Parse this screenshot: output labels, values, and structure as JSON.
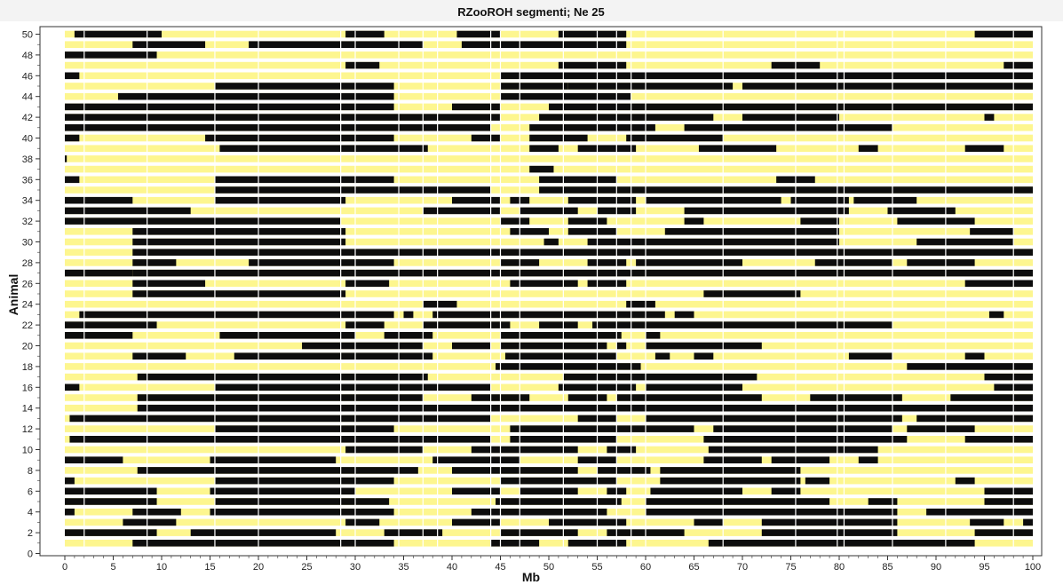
{
  "colors": {
    "homozygous": "#0d0d0d",
    "non_homozygous": "#fdf68f",
    "gap": "#ffffff",
    "axis": "#333333",
    "title_bar": "#f3f3f3"
  },
  "chart_data": {
    "type": "heatmap",
    "title": "RZooROH segmenti; Ne 25",
    "xlabel": "Mb",
    "ylabel": "Animal",
    "xlim": [
      0,
      100
    ],
    "ylim": [
      0,
      50
    ],
    "x_ticks": [
      0,
      5,
      10,
      15,
      20,
      25,
      30,
      35,
      40,
      45,
      50,
      55,
      60,
      65,
      70,
      75,
      80,
      85,
      90,
      95,
      100
    ],
    "y_ticks": [
      0,
      2,
      4,
      6,
      8,
      10,
      12,
      14,
      16,
      18,
      20,
      22,
      24,
      26,
      28,
      30,
      32,
      34,
      36,
      38,
      40,
      42,
      44,
      46,
      48,
      50
    ],
    "grid": false,
    "legend": "none",
    "marker_gaps_mb": [
      2,
      8.5,
      15.5,
      20,
      28.5,
      30,
      34.5,
      37,
      38.5,
      44,
      45,
      47,
      51.5,
      55,
      57,
      58.5,
      60,
      68,
      75.5,
      79.8,
      80.5,
      85.5,
      91,
      98
    ],
    "series": [
      {
        "animal": 1,
        "roh": [
          [
            7,
            34
          ],
          [
            44,
            49
          ],
          [
            52,
            58
          ],
          [
            66.5,
            94
          ]
        ]
      },
      {
        "animal": 2,
        "roh": [
          [
            0,
            9.5
          ],
          [
            13,
            28
          ],
          [
            33,
            39
          ],
          [
            45,
            53
          ],
          [
            56,
            64
          ],
          [
            72,
            86
          ],
          [
            94,
            100
          ]
        ]
      },
      {
        "animal": 3,
        "roh": [
          [
            6,
            11.5
          ],
          [
            29,
            32.5
          ],
          [
            40,
            45
          ],
          [
            50,
            58
          ],
          [
            65,
            68
          ],
          [
            72,
            86
          ],
          [
            93.5,
            97
          ],
          [
            99,
            100
          ]
        ]
      },
      {
        "animal": 4,
        "roh": [
          [
            0,
            1
          ],
          [
            7,
            12
          ],
          [
            15,
            34
          ],
          [
            42,
            56
          ],
          [
            60,
            86
          ],
          [
            89,
            100
          ]
        ]
      },
      {
        "animal": 5,
        "roh": [
          [
            0,
            9.5
          ],
          [
            15.5,
            33.5
          ],
          [
            44.5,
            57.5
          ],
          [
            60,
            79
          ],
          [
            83,
            86
          ],
          [
            95,
            100
          ]
        ]
      },
      {
        "animal": 6,
        "roh": [
          [
            0,
            9.5
          ],
          [
            15,
            30
          ],
          [
            40,
            45
          ],
          [
            47,
            53
          ],
          [
            56,
            58
          ],
          [
            60.5,
            70
          ],
          [
            73,
            76
          ],
          [
            95,
            100
          ]
        ]
      },
      {
        "animal": 7,
        "roh": [
          [
            0,
            1
          ],
          [
            15.5,
            34
          ],
          [
            45,
            57
          ],
          [
            61.5,
            76
          ],
          [
            76.5,
            79
          ],
          [
            92,
            94
          ]
        ]
      },
      {
        "animal": 8,
        "roh": [
          [
            7.5,
            36.5
          ],
          [
            40,
            53
          ],
          [
            55,
            60.5
          ],
          [
            61.5,
            76
          ]
        ]
      },
      {
        "animal": 9,
        "roh": [
          [
            0,
            6
          ],
          [
            15,
            28
          ],
          [
            38,
            47
          ],
          [
            53,
            57
          ],
          [
            66,
            72
          ],
          [
            73,
            79
          ],
          [
            82,
            84
          ]
        ]
      },
      {
        "animal": 10,
        "roh": [
          [
            29,
            37
          ],
          [
            42,
            53
          ],
          [
            56,
            59
          ],
          [
            66.5,
            84
          ]
        ]
      },
      {
        "animal": 11,
        "roh": [
          [
            0.5,
            44
          ],
          [
            46,
            57
          ],
          [
            66,
            87
          ],
          [
            93,
            100
          ]
        ]
      },
      {
        "animal": 12,
        "roh": [
          [
            15.5,
            34
          ],
          [
            46,
            57
          ],
          [
            57,
            65
          ],
          [
            67,
            85.5
          ],
          [
            87,
            94
          ]
        ]
      },
      {
        "animal": 13,
        "roh": [
          [
            0.5,
            44
          ],
          [
            53,
            57
          ],
          [
            60,
            86.5
          ],
          [
            88,
            100
          ]
        ]
      },
      {
        "animal": 14,
        "roh": [
          [
            7.5,
            100
          ]
        ]
      },
      {
        "animal": 15,
        "roh": [
          [
            7.5,
            37
          ],
          [
            42,
            48
          ],
          [
            52,
            56
          ],
          [
            57,
            72
          ],
          [
            77,
            86.5
          ],
          [
            91.5,
            100
          ]
        ]
      },
      {
        "animal": 16,
        "roh": [
          [
            0,
            1.5
          ],
          [
            15.5,
            44
          ],
          [
            51,
            59
          ],
          [
            60,
            70
          ],
          [
            96,
            100
          ]
        ]
      },
      {
        "animal": 17,
        "roh": [
          [
            7.5,
            37.5
          ],
          [
            51.5,
            71.5
          ],
          [
            95,
            100
          ]
        ]
      },
      {
        "animal": 18,
        "roh": [
          [
            44.5,
            59.5
          ],
          [
            87,
            100
          ]
        ]
      },
      {
        "animal": 19,
        "roh": [
          [
            7,
            12.5
          ],
          [
            17.5,
            38
          ],
          [
            45.5,
            57
          ],
          [
            61,
            62.5
          ],
          [
            65,
            67
          ],
          [
            81,
            85.5
          ],
          [
            93,
            95
          ]
        ]
      },
      {
        "animal": 20,
        "roh": [
          [
            24.5,
            37
          ],
          [
            40,
            44
          ],
          [
            45,
            56
          ],
          [
            57,
            58
          ],
          [
            60,
            72
          ]
        ]
      },
      {
        "animal": 21,
        "roh": [
          [
            0,
            7
          ],
          [
            16,
            30
          ],
          [
            33,
            38
          ],
          [
            45,
            57.5
          ],
          [
            60,
            61.5
          ]
        ]
      },
      {
        "animal": 22,
        "roh": [
          [
            0,
            9.5
          ],
          [
            29,
            33
          ],
          [
            37,
            46
          ],
          [
            49,
            53
          ],
          [
            54.5,
            85.5
          ]
        ]
      },
      {
        "animal": 23,
        "roh": [
          [
            1.5,
            34
          ],
          [
            35,
            36
          ],
          [
            38,
            62
          ],
          [
            63,
            65
          ],
          [
            95.5,
            97
          ]
        ]
      },
      {
        "animal": 24,
        "roh": [
          [
            37,
            40.5
          ],
          [
            58,
            61
          ]
        ]
      },
      {
        "animal": 25,
        "roh": [
          [
            7,
            29
          ],
          [
            66,
            76
          ]
        ]
      },
      {
        "animal": 26,
        "roh": [
          [
            7,
            14.5
          ],
          [
            29,
            33.5
          ],
          [
            46,
            53
          ],
          [
            54,
            58
          ],
          [
            93,
            100
          ]
        ]
      },
      {
        "animal": 27,
        "roh": [
          [
            0,
            7
          ],
          [
            7,
            100
          ]
        ]
      },
      {
        "animal": 28,
        "roh": [
          [
            7,
            11.5
          ],
          [
            19,
            34
          ],
          [
            45,
            49
          ],
          [
            54,
            58
          ],
          [
            59,
            70
          ],
          [
            77.5,
            85.5
          ],
          [
            87,
            94
          ]
        ]
      },
      {
        "animal": 29,
        "roh": [
          [
            7,
            100
          ]
        ]
      },
      {
        "animal": 30,
        "roh": [
          [
            7,
            29
          ],
          [
            49.5,
            51
          ],
          [
            54,
            80
          ],
          [
            88,
            98
          ]
        ]
      },
      {
        "animal": 31,
        "roh": [
          [
            7,
            29
          ],
          [
            46,
            50
          ],
          [
            52,
            57
          ],
          [
            62,
            80
          ],
          [
            93.5,
            98
          ]
        ]
      },
      {
        "animal": 32,
        "roh": [
          [
            0,
            28.5
          ],
          [
            45,
            48
          ],
          [
            52,
            56
          ],
          [
            64,
            66
          ],
          [
            76,
            80
          ],
          [
            86,
            94
          ]
        ]
      },
      {
        "animal": 33,
        "roh": [
          [
            0,
            13
          ],
          [
            37,
            45
          ],
          [
            47,
            53
          ],
          [
            55,
            59
          ],
          [
            64,
            81
          ],
          [
            85,
            92
          ]
        ]
      },
      {
        "animal": 34,
        "roh": [
          [
            0,
            7
          ],
          [
            15.5,
            29
          ],
          [
            40,
            45
          ],
          [
            46,
            48
          ],
          [
            52,
            59
          ],
          [
            60,
            74
          ],
          [
            75,
            81
          ],
          [
            81.5,
            88
          ]
        ]
      },
      {
        "animal": 35,
        "roh": [
          [
            15.5,
            44
          ],
          [
            49,
            100
          ]
        ]
      },
      {
        "animal": 36,
        "roh": [
          [
            0,
            1.5
          ],
          [
            15.5,
            34
          ],
          [
            49,
            57
          ],
          [
            73.5,
            77.5
          ]
        ]
      },
      {
        "animal": 37,
        "roh": [
          [
            48,
            50.5
          ]
        ]
      },
      {
        "animal": 38,
        "roh": [
          [
            0,
            0.2
          ]
        ]
      },
      {
        "animal": 39,
        "roh": [
          [
            16,
            37.5
          ],
          [
            48,
            51
          ],
          [
            53,
            59
          ],
          [
            65.5,
            73.5
          ],
          [
            82,
            84
          ],
          [
            93,
            97
          ]
        ]
      },
      {
        "animal": 40,
        "roh": [
          [
            0,
            1.5
          ],
          [
            14.5,
            34
          ],
          [
            42,
            45
          ],
          [
            48,
            54
          ],
          [
            58,
            68
          ]
        ]
      },
      {
        "animal": 41,
        "roh": [
          [
            0,
            44
          ],
          [
            48,
            61
          ],
          [
            64,
            85.5
          ]
        ]
      },
      {
        "animal": 42,
        "roh": [
          [
            0,
            45
          ],
          [
            49,
            57
          ],
          [
            57,
            65
          ],
          [
            65,
            67
          ],
          [
            70,
            80
          ],
          [
            95,
            96
          ]
        ]
      },
      {
        "animal": 43,
        "roh": [
          [
            0,
            34
          ],
          [
            40,
            45
          ],
          [
            50,
            100
          ]
        ]
      },
      {
        "animal": 44,
        "roh": [
          [
            5.5,
            34
          ],
          [
            45,
            58.5
          ]
        ]
      },
      {
        "animal": 45,
        "roh": [
          [
            15.5,
            34
          ],
          [
            45,
            52
          ],
          [
            52,
            60
          ],
          [
            60,
            69
          ],
          [
            70,
            100
          ]
        ]
      },
      {
        "animal": 46,
        "roh": [
          [
            0,
            1.5
          ],
          [
            45,
            100
          ]
        ]
      },
      {
        "animal": 47,
        "roh": [
          [
            29,
            32.5
          ],
          [
            51,
            58
          ],
          [
            73,
            78
          ],
          [
            97,
            100
          ]
        ]
      },
      {
        "animal": 48,
        "roh": [
          [
            0,
            9.5
          ]
        ]
      },
      {
        "animal": 49,
        "roh": [
          [
            7,
            14.5
          ],
          [
            19,
            37
          ],
          [
            41,
            58
          ]
        ]
      },
      {
        "animal": 50,
        "roh": [
          [
            1,
            10
          ],
          [
            29,
            33
          ],
          [
            40.5,
            45
          ],
          [
            51,
            58
          ],
          [
            94,
            100
          ]
        ]
      }
    ]
  }
}
